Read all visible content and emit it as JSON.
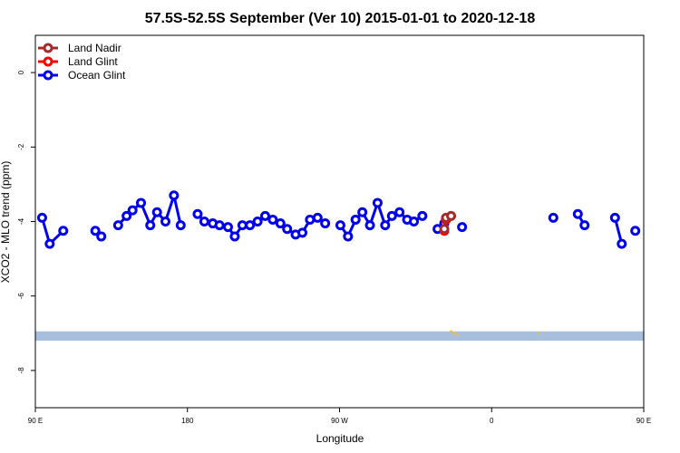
{
  "chart_data": {
    "type": "line",
    "title": "57.5S-52.5S September (Ver 10)   2015-01-01 to 2020-12-18",
    "xlabel": "Longitude",
    "ylabel": "XCO2 - MLO trend (ppm)",
    "xlim": [
      90,
      450
    ],
    "ylim": [
      -9,
      1
    ],
    "x_ticks": [
      {
        "value": 90,
        "label": "90 E"
      },
      {
        "value": 180,
        "label": "180"
      },
      {
        "value": 270,
        "label": "90 W"
      },
      {
        "value": 360,
        "label": "0"
      },
      {
        "value": 450,
        "label": "90 E"
      },
      {
        "value": 540,
        "label": "180"
      }
    ],
    "y_ticks": [
      0,
      -2,
      -4,
      -6,
      -8
    ],
    "legend_position": "top-left",
    "grid": false,
    "land_band": {
      "y_range": [
        -7.2,
        -6.95
      ],
      "color": "#a8bedd"
    },
    "series": [
      {
        "name": "Land Nadir",
        "color": "#a52a2a",
        "segments": [
          [
            [
              332,
              -4.2
            ],
            [
              333,
              -3.9
            ],
            [
              336,
              -3.85
            ]
          ]
        ]
      },
      {
        "name": "Land Glint",
        "color": "#ff0000",
        "segments": [
          [
            [
              332,
              -4.25
            ],
            [
              333,
              -3.95
            ]
          ]
        ]
      },
      {
        "name": "Ocean Glint",
        "color": "#0000ee",
        "segments": [
          [
            [
              94,
              -3.9
            ],
            [
              98.5,
              -4.6
            ],
            [
              106.5,
              -4.25
            ]
          ],
          [
            [
              125.5,
              -4.25
            ],
            [
              129,
              -4.4
            ]
          ],
          [
            [
              139,
              -4.1
            ],
            [
              144,
              -3.85
            ],
            [
              147.5,
              -3.7
            ],
            [
              152.5,
              -3.5
            ],
            [
              158,
              -4.1
            ],
            [
              162,
              -3.75
            ],
            [
              167,
              -4.0
            ],
            [
              172,
              -3.3
            ],
            [
              176,
              -4.1
            ]
          ],
          [
            [
              186,
              -3.8
            ],
            [
              190,
              -4.0
            ],
            [
              195,
              -4.05
            ],
            [
              199,
              -4.1
            ],
            [
              204,
              -4.15
            ],
            [
              208,
              -4.4
            ],
            [
              212.5,
              -4.1
            ],
            [
              217,
              -4.1
            ],
            [
              221.5,
              -4.0
            ],
            [
              226,
              -3.85
            ],
            [
              230.5,
              -3.95
            ],
            [
              235,
              -4.05
            ],
            [
              239,
              -4.2
            ],
            [
              244,
              -4.35
            ],
            [
              248,
              -4.3
            ],
            [
              252.5,
              -3.95
            ],
            [
              257,
              -3.9
            ],
            [
              261.5,
              -4.05
            ]
          ],
          [
            [
              270.5,
              -4.1
            ],
            [
              275,
              -4.4
            ],
            [
              279.5,
              -3.95
            ],
            [
              283.5,
              -3.75
            ],
            [
              288,
              -4.1
            ],
            [
              292.5,
              -3.5
            ],
            [
              297,
              -4.1
            ],
            [
              301,
              -3.85
            ],
            [
              305.5,
              -3.75
            ],
            [
              310,
              -3.95
            ],
            [
              314,
              -4.0
            ],
            [
              319,
              -3.85
            ]
          ],
          [
            [
              328,
              -4.2
            ],
            [
              332,
              -4.05
            ]
          ],
          [
            [
              342.5,
              -4.15
            ]
          ],
          [
            [
              396.5,
              -3.9
            ]
          ],
          [
            [
              411,
              -3.8
            ],
            [
              415,
              -4.1
            ]
          ],
          [
            [
              433,
              -3.9
            ],
            [
              437,
              -4.6
            ]
          ],
          [
            [
              445,
              -4.25
            ]
          ],
          [
            [
              455,
              -4.25
            ],
            [
              458,
              -4.4
            ]
          ],
          [
            [
              464,
              -4.1
            ],
            [
              468,
              -3.85
            ],
            [
              472,
              -3.7
            ],
            [
              476,
              -3.5
            ],
            [
              480,
              -4.1
            ],
            [
              484,
              -3.75
            ],
            [
              488,
              -3.95
            ],
            [
              492,
              -3.3
            ],
            [
              495.5,
              -4.1
            ]
          ]
        ]
      }
    ]
  }
}
